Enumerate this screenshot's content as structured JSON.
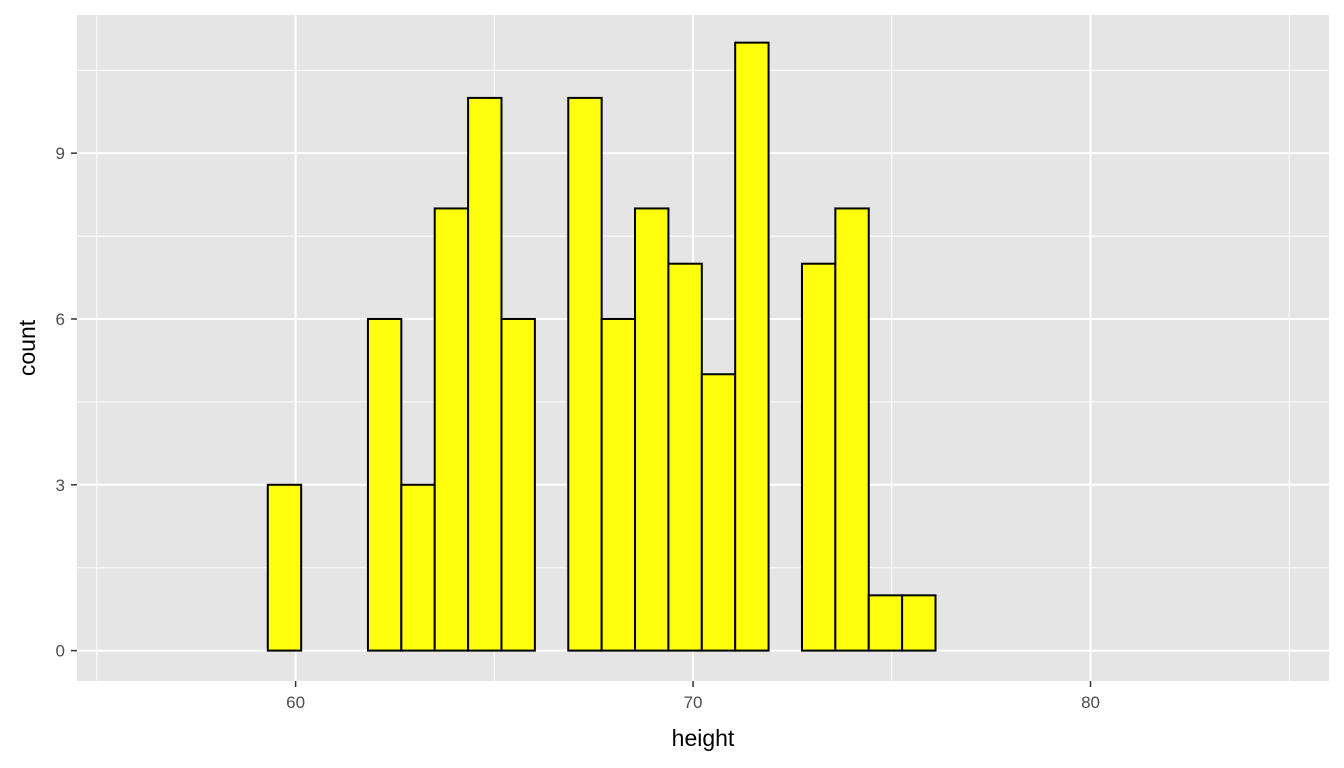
{
  "chart_data": {
    "type": "bar",
    "subtype": "histogram",
    "xlabel": "height",
    "ylabel": "count",
    "xlim": [
      54.5,
      86
    ],
    "ylim": [
      -0.55,
      11.5
    ],
    "x_ticks": [
      60,
      70,
      80
    ],
    "x_minor_ticks": [
      55,
      65,
      75,
      85
    ],
    "y_ticks": [
      0,
      3,
      6,
      9
    ],
    "y_minor_ticks": [
      1.5,
      4.5,
      7.5,
      10.5
    ],
    "bins": [
      {
        "x0": 59.3,
        "x1": 60.14,
        "count": 3
      },
      {
        "x0": 60.14,
        "x1": 60.98,
        "count": 0
      },
      {
        "x0": 60.98,
        "x1": 61.82,
        "count": 0
      },
      {
        "x0": 61.82,
        "x1": 62.66,
        "count": 6
      },
      {
        "x0": 62.66,
        "x1": 63.5,
        "count": 3
      },
      {
        "x0": 63.5,
        "x1": 64.34,
        "count": 8
      },
      {
        "x0": 64.34,
        "x1": 65.18,
        "count": 10
      },
      {
        "x0": 65.18,
        "x1": 66.02,
        "count": 6
      },
      {
        "x0": 66.02,
        "x1": 66.86,
        "count": 0
      },
      {
        "x0": 66.86,
        "x1": 67.7,
        "count": 10
      },
      {
        "x0": 67.7,
        "x1": 68.54,
        "count": 6
      },
      {
        "x0": 68.54,
        "x1": 69.38,
        "count": 8
      },
      {
        "x0": 69.38,
        "x1": 70.22,
        "count": 7
      },
      {
        "x0": 70.22,
        "x1": 71.06,
        "count": 5
      },
      {
        "x0": 71.06,
        "x1": 71.9,
        "count": 11
      },
      {
        "x0": 71.9,
        "x1": 72.74,
        "count": 0
      },
      {
        "x0": 72.74,
        "x1": 73.58,
        "count": 7
      },
      {
        "x0": 73.58,
        "x1": 74.42,
        "count": 8
      },
      {
        "x0": 74.42,
        "x1": 75.26,
        "count": 1
      },
      {
        "x0": 75.26,
        "x1": 76.1,
        "count": 1
      }
    ],
    "bar_fill": "#ffff0d",
    "bar_stroke": "#000000",
    "panel_background": "#e5e5e5",
    "grid_color": "#ffffff",
    "grid": true,
    "legend": "none"
  }
}
